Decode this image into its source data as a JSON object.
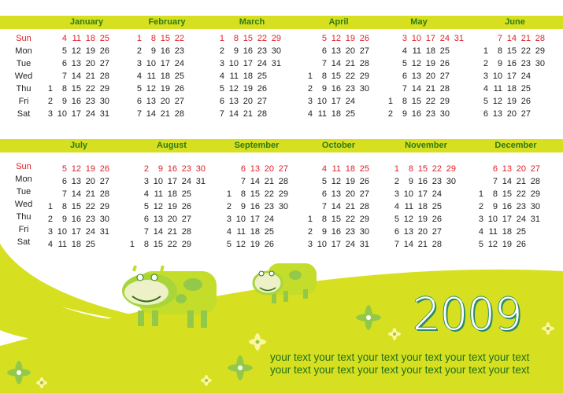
{
  "year": "2009",
  "day_labels": [
    "Sun",
    "Mon",
    "Tue",
    "Wed",
    "Thu",
    "Fri",
    "Sat"
  ],
  "colors": {
    "bar": "#d6e021",
    "sunday": "#e0202a",
    "month_title": "#2f7a12",
    "hill": "#d6e021"
  },
  "months": [
    {
      "name": "January",
      "weeks": [
        [
          null,
          null,
          null,
          null,
          1,
          2,
          3
        ],
        [
          4,
          5,
          6,
          7,
          8,
          9,
          10
        ],
        [
          11,
          12,
          13,
          14,
          15,
          16,
          17
        ],
        [
          18,
          19,
          20,
          21,
          22,
          23,
          24
        ],
        [
          25,
          26,
          27,
          28,
          29,
          30,
          31
        ]
      ]
    },
    {
      "name": "February",
      "weeks": [
        [
          1,
          2,
          3,
          4,
          5,
          6,
          7
        ],
        [
          8,
          9,
          10,
          11,
          12,
          13,
          14
        ],
        [
          15,
          16,
          17,
          18,
          19,
          20,
          21
        ],
        [
          22,
          23,
          24,
          25,
          26,
          27,
          28
        ]
      ]
    },
    {
      "name": "March",
      "weeks": [
        [
          1,
          2,
          3,
          4,
          5,
          6,
          7
        ],
        [
          8,
          9,
          10,
          11,
          12,
          13,
          14
        ],
        [
          15,
          16,
          17,
          18,
          19,
          20,
          21
        ],
        [
          22,
          23,
          24,
          25,
          26,
          27,
          28
        ],
        [
          29,
          30,
          31,
          null,
          null,
          null,
          null
        ]
      ]
    },
    {
      "name": "April",
      "weeks": [
        [
          null,
          null,
          null,
          1,
          2,
          3,
          4
        ],
        [
          5,
          6,
          7,
          8,
          9,
          10,
          11
        ],
        [
          12,
          13,
          14,
          15,
          16,
          17,
          18
        ],
        [
          19,
          20,
          21,
          22,
          23,
          24,
          25
        ],
        [
          26,
          27,
          28,
          29,
          30,
          null,
          null
        ]
      ]
    },
    {
      "name": "May",
      "weeks": [
        [
          null,
          null,
          null,
          null,
          null,
          1,
          2
        ],
        [
          3,
          4,
          5,
          6,
          7,
          8,
          9
        ],
        [
          10,
          11,
          12,
          13,
          14,
          15,
          16
        ],
        [
          17,
          18,
          19,
          20,
          21,
          22,
          23
        ],
        [
          24,
          25,
          26,
          27,
          28,
          29,
          30
        ],
        [
          31,
          null,
          null,
          null,
          null,
          null,
          null
        ]
      ]
    },
    {
      "name": "June",
      "weeks": [
        [
          null,
          1,
          2,
          3,
          4,
          5,
          6
        ],
        [
          7,
          8,
          9,
          10,
          11,
          12,
          13
        ],
        [
          14,
          15,
          16,
          17,
          18,
          19,
          20
        ],
        [
          21,
          22,
          23,
          24,
          25,
          26,
          27
        ],
        [
          28,
          29,
          30,
          null,
          null,
          null,
          null
        ]
      ]
    },
    {
      "name": "July",
      "weeks": [
        [
          null,
          null,
          null,
          1,
          2,
          3,
          4
        ],
        [
          5,
          6,
          7,
          8,
          9,
          10,
          11
        ],
        [
          12,
          13,
          14,
          15,
          16,
          17,
          18
        ],
        [
          19,
          20,
          21,
          22,
          23,
          24,
          25
        ],
        [
          26,
          27,
          28,
          29,
          30,
          31,
          null
        ]
      ]
    },
    {
      "name": "August",
      "weeks": [
        [
          null,
          null,
          null,
          null,
          null,
          null,
          1
        ],
        [
          2,
          3,
          4,
          5,
          6,
          7,
          8
        ],
        [
          9,
          10,
          11,
          12,
          13,
          14,
          15
        ],
        [
          16,
          17,
          18,
          19,
          20,
          21,
          22
        ],
        [
          23,
          24,
          25,
          26,
          27,
          28,
          29
        ],
        [
          30,
          31,
          null,
          null,
          null,
          null,
          null
        ]
      ]
    },
    {
      "name": "September",
      "weeks": [
        [
          null,
          null,
          1,
          2,
          3,
          4,
          5
        ],
        [
          6,
          7,
          8,
          9,
          10,
          11,
          12
        ],
        [
          13,
          14,
          15,
          16,
          17,
          18,
          19
        ],
        [
          20,
          21,
          22,
          23,
          24,
          25,
          26
        ],
        [
          27,
          28,
          29,
          30,
          null,
          null,
          null
        ]
      ]
    },
    {
      "name": "October",
      "weeks": [
        [
          null,
          null,
          null,
          null,
          1,
          2,
          3
        ],
        [
          4,
          5,
          6,
          7,
          8,
          9,
          10
        ],
        [
          11,
          12,
          13,
          14,
          15,
          16,
          17
        ],
        [
          18,
          19,
          20,
          21,
          22,
          23,
          24
        ],
        [
          25,
          26,
          27,
          28,
          29,
          30,
          31
        ]
      ]
    },
    {
      "name": "November",
      "weeks": [
        [
          1,
          2,
          3,
          4,
          5,
          6,
          7
        ],
        [
          8,
          9,
          10,
          11,
          12,
          13,
          14
        ],
        [
          15,
          16,
          17,
          18,
          19,
          20,
          21
        ],
        [
          22,
          23,
          24,
          25,
          26,
          27,
          28
        ],
        [
          29,
          30,
          null,
          null,
          null,
          null,
          null
        ]
      ]
    },
    {
      "name": "December",
      "weeks": [
        [
          null,
          null,
          1,
          2,
          3,
          4,
          5
        ],
        [
          6,
          7,
          8,
          9,
          10,
          11,
          12
        ],
        [
          13,
          14,
          15,
          16,
          17,
          18,
          19
        ],
        [
          20,
          21,
          22,
          23,
          24,
          25,
          26
        ],
        [
          27,
          28,
          29,
          30,
          31,
          null,
          null
        ]
      ]
    }
  ],
  "tagline": [
    "your text your text your text your text your text your text",
    "your text your text your text your text your text your text"
  ]
}
